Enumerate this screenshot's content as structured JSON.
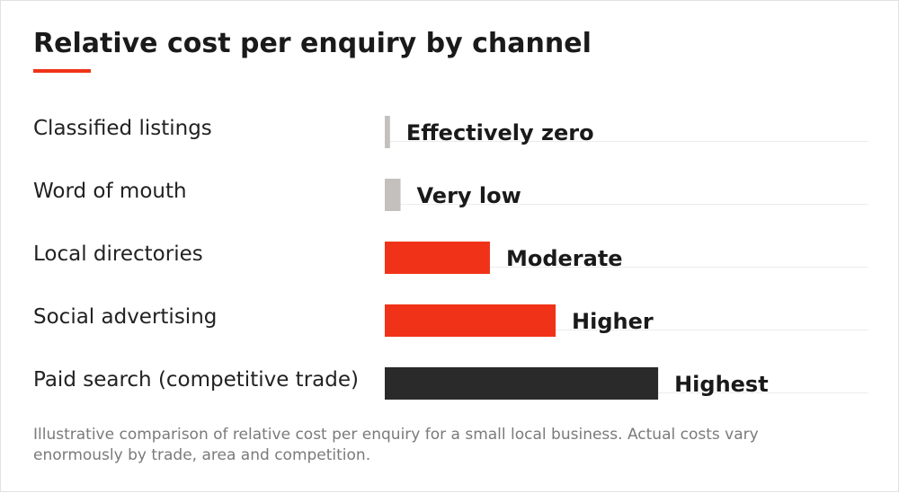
{
  "title": "Relative cost per enquiry by channel",
  "note": "Illustrative comparison of relative cost per enquiry for a small local business. Actual costs vary enormously by trade, area and competition.",
  "colors": {
    "accent": "#f03318",
    "dark": "#2a2a2a",
    "muted": "#c4c0be",
    "grid": "#ececec",
    "category_text": "#222222",
    "label_text": "#1a1a1a"
  },
  "chart_data": {
    "type": "bar",
    "orientation": "horizontal",
    "title": "Relative cost per enquiry by channel",
    "categories": [
      "Classified listings",
      "Word of mouth",
      "Local directories",
      "Social advertising",
      "Paid search (competitive trade)"
    ],
    "values": [
      1,
      3,
      20,
      32.5,
      52
    ],
    "data_labels": [
      "Effectively zero",
      "Very low",
      "Moderate",
      "Higher",
      "Highest"
    ],
    "bar_colors": [
      "#c4c0be",
      "#c4c0be",
      "#f03318",
      "#f03318",
      "#2a2a2a"
    ],
    "xlim": [
      0,
      92
    ],
    "axis_visible": false,
    "grid": false
  }
}
